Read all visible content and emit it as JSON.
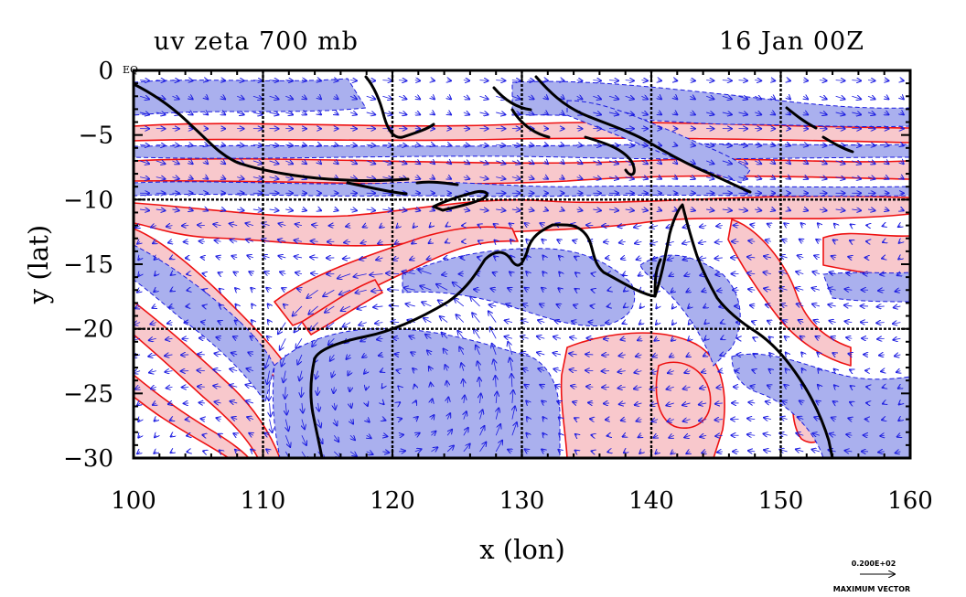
{
  "title_left": "uv zeta 700 mb",
  "title_right": "16 Jan 00Z",
  "corner_label": "EQ",
  "x_axis": {
    "label": "x (lon)",
    "ticks": [
      "100",
      "110",
      "120",
      "130",
      "140",
      "150",
      "160"
    ],
    "range": [
      100,
      160
    ]
  },
  "y_axis": {
    "label": "y (lat)",
    "ticks": [
      "0",
      "−5",
      "−10",
      "−15",
      "−20",
      "−25",
      "−30"
    ],
    "range": [
      -30,
      0
    ]
  },
  "grid_lines": {
    "lon": [
      110,
      120,
      130,
      140,
      150
    ],
    "lat": [
      -10,
      -20
    ]
  },
  "vector_key": {
    "value": "0.200E+02",
    "label": "MAXIMUM VECTOR",
    "arrow": "→"
  },
  "colors": {
    "positive_shade": "#f8c8cc",
    "negative_shade": "#aab0ee",
    "positive_contour": "#ee1111",
    "negative_contour": "#1a1ae0",
    "wind_vectors": "#1a1ae0",
    "coastline": "#000000",
    "grid": "#000000"
  }
}
